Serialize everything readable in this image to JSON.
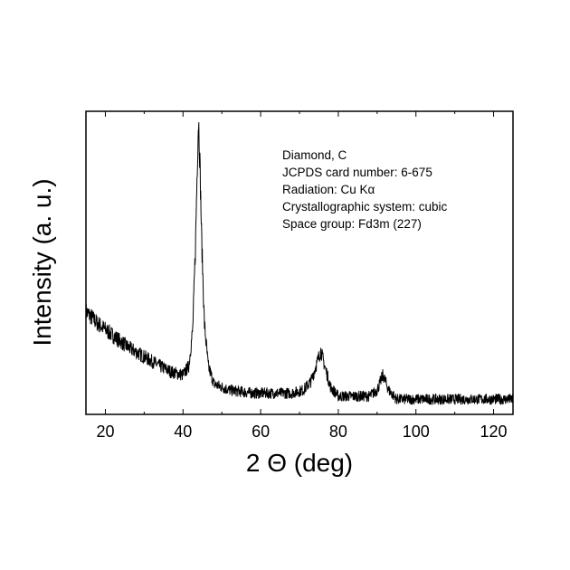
{
  "chart_data": {
    "type": "line",
    "xlabel": "2 Θ (deg)",
    "ylabel": "Intensity (a. u.)",
    "xlim": [
      15,
      125
    ],
    "ylim": [
      0,
      100
    ],
    "y_ticks_labeled": false,
    "grid": false,
    "legend": "none",
    "x_ticks": [
      "20",
      "40",
      "60",
      "80",
      "100",
      "120"
    ],
    "annotations": [
      "Diamond, C",
      "JCPDS card number: 6-675",
      "Radiation: Cu Kα",
      "Crystallographic system: cubic",
      "Space group: Fd3m (227)"
    ],
    "series": [
      {
        "x": [
          15,
          18,
          22,
          26,
          30,
          34,
          37,
          40,
          41.5,
          42.5,
          43.2,
          43.7,
          44.0,
          44.3,
          44.8,
          45.5,
          46.5,
          48,
          52,
          58,
          64,
          68,
          71,
          73,
          74.5,
          75.5,
          76.5,
          78,
          80,
          84,
          88,
          90,
          91.5,
          93,
          95,
          100,
          105,
          110,
          115,
          120,
          125
        ],
        "y": [
          34,
          30,
          26,
          22,
          19,
          16,
          14,
          13,
          16,
          28,
          55,
          84,
          98,
          86,
          58,
          30,
          16,
          10,
          8,
          7,
          7,
          7,
          8,
          11,
          17,
          21,
          16,
          9,
          6,
          6,
          6,
          8,
          13,
          8,
          5,
          5,
          5,
          5,
          5,
          5,
          5
        ],
        "noise_amplitude": 2.5
      }
    ],
    "line_color": "#000000"
  }
}
